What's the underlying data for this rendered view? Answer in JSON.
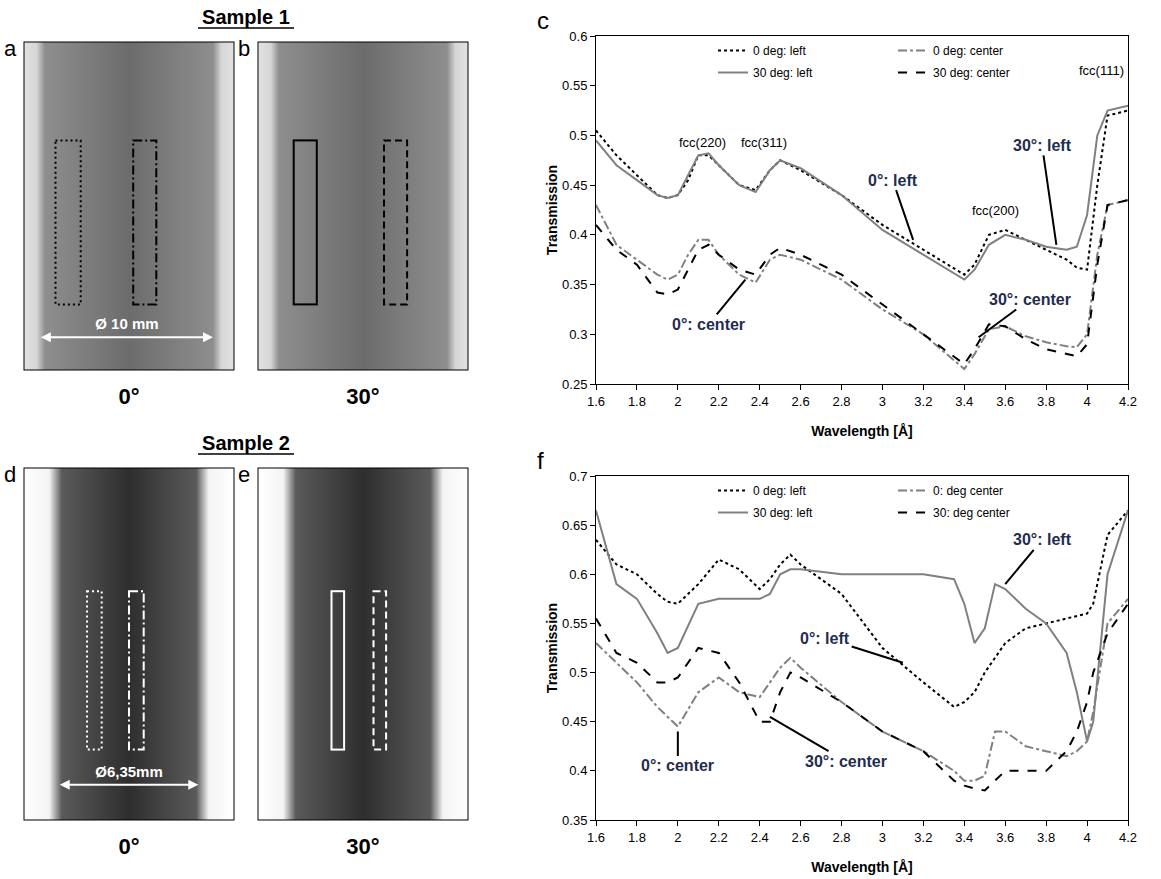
{
  "figure": {
    "samples": [
      {
        "title": "Sample 1",
        "diameter_label": "Ø 10 mm",
        "panels": [
          {
            "letter": "a",
            "angle": "0°",
            "box_color": "#000000",
            "boxes": [
              {
                "line_style": "dotted"
              },
              {
                "line_style": "dashdot"
              }
            ]
          },
          {
            "letter": "b",
            "angle": "30°",
            "box_color": "#000000",
            "boxes": [
              {
                "line_style": "solid"
              },
              {
                "line_style": "dashed"
              }
            ]
          }
        ]
      },
      {
        "title": "Sample 2",
        "diameter_label": "Ø6,35mm",
        "panels": [
          {
            "letter": "d",
            "angle": "0°",
            "box_color": "#ffffff",
            "boxes": [
              {
                "line_style": "dotted"
              },
              {
                "line_style": "dashdot"
              }
            ]
          },
          {
            "letter": "e",
            "angle": "30°",
            "box_color": "#ffffff",
            "boxes": [
              {
                "line_style": "solid"
              },
              {
                "line_style": "dashed"
              }
            ]
          }
        ]
      }
    ]
  },
  "chart_data": [
    {
      "type": "line",
      "panel": "c",
      "x_label": "Wavelength [Å]",
      "y_label": "Transmission",
      "xlim": [
        1.6,
        4.2
      ],
      "xticks": [
        1.6,
        1.8,
        2,
        2.2,
        2.4,
        2.6,
        2.8,
        3,
        3.2,
        3.4,
        3.6,
        3.8,
        4,
        4.2
      ],
      "ylim": [
        0.25,
        0.6
      ],
      "yticks": [
        0.25,
        0.3,
        0.35,
        0.4,
        0.45,
        0.5,
        0.55,
        0.6
      ],
      "grid": false,
      "legend": "top",
      "x": [
        1.6,
        1.7,
        1.8,
        1.9,
        1.95,
        2.0,
        2.05,
        2.1,
        2.15,
        2.2,
        2.3,
        2.38,
        2.45,
        2.5,
        2.6,
        2.8,
        3.0,
        3.2,
        3.4,
        3.45,
        3.52,
        3.6,
        3.7,
        3.8,
        3.9,
        3.95,
        4.0,
        4.05,
        4.1,
        4.2
      ],
      "series": [
        {
          "name": "0 deg: left",
          "color": "#000000",
          "line_style": "dot",
          "values": [
            0.505,
            0.48,
            0.46,
            0.44,
            0.437,
            0.44,
            0.455,
            0.48,
            0.48,
            0.47,
            0.45,
            0.445,
            0.465,
            0.475,
            0.465,
            0.44,
            0.41,
            0.385,
            0.36,
            0.37,
            0.4,
            0.405,
            0.395,
            0.385,
            0.375,
            0.367,
            0.365,
            0.45,
            0.52,
            0.525
          ]
        },
        {
          "name": "0 deg: center",
          "color": "#808080",
          "line_style": "dashdot",
          "values": [
            0.43,
            0.39,
            0.375,
            0.36,
            0.355,
            0.36,
            0.38,
            0.395,
            0.395,
            0.38,
            0.36,
            0.352,
            0.375,
            0.38,
            0.375,
            0.355,
            0.325,
            0.3,
            0.265,
            0.28,
            0.305,
            0.308,
            0.298,
            0.292,
            0.288,
            0.287,
            0.3,
            0.38,
            0.43,
            0.435
          ]
        },
        {
          "name": "30 deg: left",
          "color": "#808080",
          "line_style": "solid",
          "values": [
            0.495,
            0.47,
            0.455,
            0.44,
            0.437,
            0.44,
            0.46,
            0.48,
            0.482,
            0.47,
            0.45,
            0.443,
            0.465,
            0.475,
            0.467,
            0.44,
            0.405,
            0.38,
            0.355,
            0.365,
            0.39,
            0.4,
            0.395,
            0.388,
            0.385,
            0.388,
            0.42,
            0.5,
            0.525,
            0.53
          ]
        },
        {
          "name": "30 deg: center",
          "color": "#000000",
          "line_style": "dash",
          "values": [
            0.41,
            0.385,
            0.37,
            0.342,
            0.34,
            0.345,
            0.365,
            0.385,
            0.39,
            0.38,
            0.365,
            0.36,
            0.38,
            0.387,
            0.38,
            0.36,
            0.33,
            0.3,
            0.27,
            0.285,
            0.31,
            0.308,
            0.295,
            0.285,
            0.28,
            0.278,
            0.29,
            0.37,
            0.43,
            0.435
          ]
        }
      ],
      "annotations": [
        {
          "text": "fcc(220)",
          "x": 2.12,
          "y": 0.493
        },
        {
          "text": "fcc(311)",
          "x": 2.42,
          "y": 0.493
        },
        {
          "text": "fcc(200)",
          "x": 3.55,
          "y": 0.425
        },
        {
          "text": "fcc(111)",
          "x": 4.07,
          "y": 0.565
        },
        {
          "text": "0°: left",
          "x": 3.05,
          "y": 0.455,
          "arrow_x": 3.15,
          "arrow_y": 0.395
        },
        {
          "text": "30°: left",
          "x": 3.78,
          "y": 0.49,
          "arrow_x": 3.85,
          "arrow_y": 0.39
        },
        {
          "text": "0°: center",
          "x": 2.15,
          "y": 0.31,
          "arrow_x": 2.33,
          "arrow_y": 0.355
        },
        {
          "text": "30°: center",
          "x": 3.72,
          "y": 0.335,
          "arrow_x": 3.47,
          "arrow_y": 0.297
        }
      ]
    },
    {
      "type": "line",
      "panel": "f",
      "x_label": "Wavelength [Å]",
      "y_label": "Transmission",
      "xlim": [
        1.6,
        4.2
      ],
      "xticks": [
        1.6,
        1.8,
        2,
        2.2,
        2.4,
        2.6,
        2.8,
        3,
        3.2,
        3.4,
        3.6,
        3.8,
        4,
        4.2
      ],
      "ylim": [
        0.35,
        0.7
      ],
      "yticks": [
        0.35,
        0.4,
        0.45,
        0.5,
        0.55,
        0.6,
        0.65,
        0.7
      ],
      "grid": false,
      "legend": "top",
      "x": [
        1.6,
        1.7,
        1.8,
        1.9,
        1.95,
        2.0,
        2.1,
        2.2,
        2.3,
        2.4,
        2.45,
        2.5,
        2.55,
        2.6,
        2.8,
        3.0,
        3.2,
        3.35,
        3.4,
        3.45,
        3.5,
        3.55,
        3.6,
        3.7,
        3.8,
        3.9,
        3.95,
        4.0,
        4.03,
        4.1,
        4.2
      ],
      "series": [
        {
          "name": "0 deg: left",
          "color": "#000000",
          "line_style": "dot",
          "values": [
            0.635,
            0.61,
            0.6,
            0.58,
            0.572,
            0.57,
            0.59,
            0.615,
            0.605,
            0.585,
            0.595,
            0.61,
            0.62,
            0.61,
            0.58,
            0.525,
            0.49,
            0.465,
            0.47,
            0.48,
            0.5,
            0.515,
            0.53,
            0.545,
            0.55,
            0.555,
            0.557,
            0.56,
            0.57,
            0.64,
            0.665
          ]
        },
        {
          "name": "0: deg center",
          "color": "#808080",
          "line_style": "dashdot",
          "values": [
            0.53,
            0.51,
            0.49,
            0.465,
            0.455,
            0.445,
            0.48,
            0.495,
            0.48,
            0.475,
            0.49,
            0.505,
            0.515,
            0.505,
            0.47,
            0.44,
            0.42,
            0.4,
            0.39,
            0.39,
            0.395,
            0.44,
            0.44,
            0.425,
            0.42,
            0.415,
            0.42,
            0.43,
            0.46,
            0.55,
            0.575
          ]
        },
        {
          "name": "30 deg: left",
          "color": "#808080",
          "line_style": "solid",
          "values": [
            0.665,
            0.59,
            0.575,
            0.54,
            0.52,
            0.525,
            0.57,
            0.575,
            0.575,
            0.575,
            0.58,
            0.6,
            0.605,
            0.605,
            0.6,
            0.6,
            0.6,
            0.595,
            0.57,
            0.53,
            0.545,
            0.59,
            0.585,
            0.565,
            0.55,
            0.52,
            0.48,
            0.43,
            0.45,
            0.6,
            0.665
          ]
        },
        {
          "name": "30: deg center",
          "color": "#000000",
          "line_style": "dash",
          "values": [
            0.555,
            0.52,
            0.51,
            0.49,
            0.49,
            0.495,
            0.525,
            0.52,
            0.49,
            0.45,
            0.45,
            0.48,
            0.5,
            0.495,
            0.47,
            0.44,
            0.42,
            0.39,
            0.385,
            0.382,
            0.38,
            0.39,
            0.4,
            0.4,
            0.4,
            0.42,
            0.44,
            0.47,
            0.5,
            0.54,
            0.57
          ]
        }
      ],
      "annotations": [
        {
          "text": "30°: left",
          "x": 3.78,
          "y": 0.635,
          "arrow_x": 3.6,
          "arrow_y": 0.59
        },
        {
          "text": "0°: left",
          "x": 2.72,
          "y": 0.535,
          "arrow_x": 3.1,
          "arrow_y": 0.51
        },
        {
          "text": "0°: center",
          "x": 2.0,
          "y": 0.405,
          "arrow_x": 2.0,
          "arrow_y": 0.44
        },
        {
          "text": "30°: center",
          "x": 2.82,
          "y": 0.41,
          "arrow_x": 2.45,
          "arrow_y": 0.455
        }
      ]
    }
  ]
}
